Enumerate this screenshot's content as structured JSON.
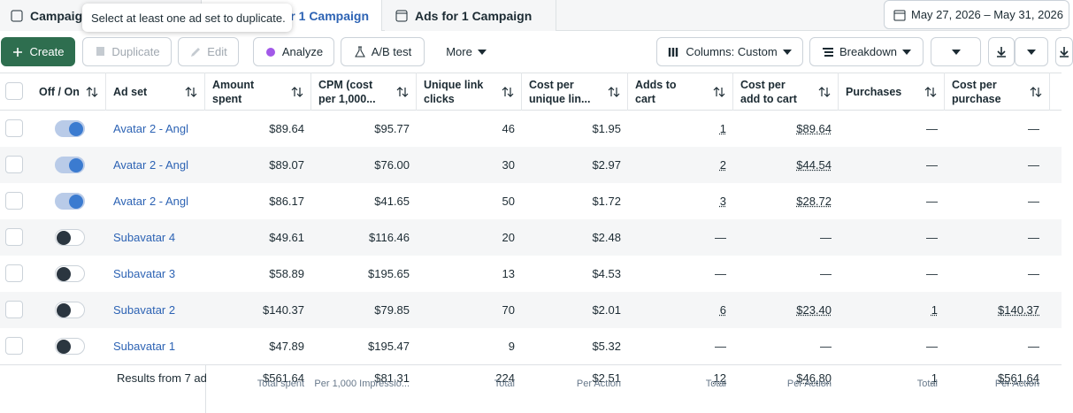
{
  "tabs": {
    "campaigns": "Campaign",
    "ad_sets": "or 1 Campaign",
    "ads": "Ads for 1 Campaign",
    "date_range": "May 27, 2026 – May 31, 2026"
  },
  "tooltip": "Select at least one ad set to duplicate.",
  "toolbar": {
    "create": "Create",
    "duplicate": "Duplicate",
    "edit": "Edit",
    "analyze": "Analyze",
    "ab_test": "A/B test",
    "more": "More",
    "columns": "Columns: Custom",
    "breakdown": "Breakdown"
  },
  "table": {
    "columns": [
      "Off / On",
      "Ad set",
      "Amount spent",
      "CPM (cost per 1,000...",
      "Unique link clicks",
      "Cost per unique lin...",
      "Adds to cart",
      "Cost per add to cart",
      "Purchases",
      "Cost per purchase"
    ],
    "rows": [
      {
        "on": true,
        "name": "Avatar 2 - Angl",
        "cells": [
          "$89.64",
          "$95.77",
          "46",
          "$1.95",
          "1",
          "$89.64",
          "—",
          "—"
        ]
      },
      {
        "on": true,
        "name": "Avatar 2 - Angl",
        "cells": [
          "$89.07",
          "$76.00",
          "30",
          "$2.97",
          "2",
          "$44.54",
          "—",
          "—"
        ]
      },
      {
        "on": true,
        "name": "Avatar 2 - Angl",
        "cells": [
          "$86.17",
          "$41.65",
          "50",
          "$1.72",
          "3",
          "$28.72",
          "—",
          "—"
        ]
      },
      {
        "on": false,
        "name": "Subavatar 4",
        "cells": [
          "$49.61",
          "$116.46",
          "20",
          "$2.48",
          "—",
          "—",
          "—",
          "—"
        ]
      },
      {
        "on": false,
        "name": "Subavatar 3",
        "cells": [
          "$58.89",
          "$195.65",
          "13",
          "$4.53",
          "—",
          "—",
          "—",
          "—"
        ]
      },
      {
        "on": false,
        "name": "Subavatar 2",
        "cells": [
          "$140.37",
          "$79.85",
          "70",
          "$2.01",
          "6",
          "$23.40",
          "1",
          "$140.37"
        ]
      },
      {
        "on": false,
        "name": "Subavatar 1",
        "cells": [
          "$47.89",
          "$195.47",
          "9",
          "$5.32",
          "—",
          "—",
          "—",
          "—"
        ]
      }
    ],
    "footer": {
      "label": "Results from 7 ad",
      "cells": [
        {
          "value": "$561.64",
          "note": "Total spent"
        },
        {
          "value": "$81.31",
          "note": "Per 1,000 Impressio..."
        },
        {
          "value": "224",
          "note": "Total"
        },
        {
          "value": "$2.51",
          "note": "Per Action"
        },
        {
          "value": "12",
          "note": "Total"
        },
        {
          "value": "$46.80",
          "note": "Per Action"
        },
        {
          "value": "1",
          "note": "Total"
        },
        {
          "value": "$561.64",
          "note": "Per Action"
        }
      ]
    }
  }
}
